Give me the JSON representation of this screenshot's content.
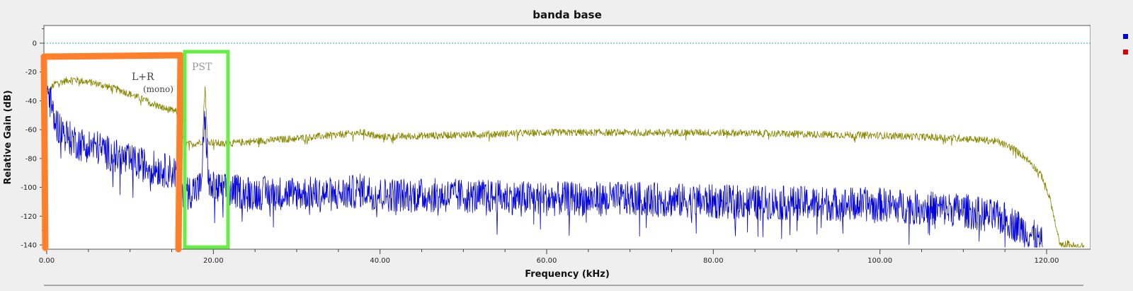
{
  "chart_data": {
    "type": "line",
    "title": "banda base",
    "xlabel": "Frequency (kHz)",
    "ylabel": "Relative Gain (dB)",
    "xlim": [
      0,
      125
    ],
    "ylim": [
      -142,
      12
    ],
    "x_ticks": [
      "0.00",
      "20.00",
      "40.00",
      "60.00",
      "80.00",
      "100.00",
      "120.00"
    ],
    "y_ticks": [
      "0",
      "-20",
      "-40",
      "-60",
      "-80",
      "-100",
      "-120",
      "-140"
    ],
    "reference_line": {
      "y": 0,
      "color": "#2aa0b0",
      "style": "dotted"
    },
    "series": [
      {
        "color": "#0000dd",
        "points": [
          [
            0.0,
            -30
          ],
          [
            1.0,
            -55
          ],
          [
            2.5,
            -65
          ],
          [
            4.0,
            -70
          ],
          [
            6.0,
            -72
          ],
          [
            8.0,
            -78
          ],
          [
            10.0,
            -82
          ],
          [
            12.0,
            -85
          ],
          [
            14.0,
            -88
          ],
          [
            15.8,
            -90
          ],
          [
            16.5,
            -105
          ],
          [
            17.5,
            -102
          ],
          [
            18.5,
            -100
          ],
          [
            18.9,
            -60
          ],
          [
            19.0,
            -55
          ],
          [
            19.1,
            -62
          ],
          [
            19.5,
            -100
          ],
          [
            21.0,
            -102
          ],
          [
            25.0,
            -104
          ],
          [
            30.0,
            -104
          ],
          [
            35.0,
            -105
          ],
          [
            38.0,
            -102
          ],
          [
            40.0,
            -105
          ],
          [
            50.0,
            -106
          ],
          [
            60.0,
            -108
          ],
          [
            70.0,
            -108
          ],
          [
            80.0,
            -110
          ],
          [
            90.0,
            -111
          ],
          [
            100.0,
            -112
          ],
          [
            110.0,
            -116
          ],
          [
            115.0,
            -122
          ],
          [
            118.0,
            -132
          ],
          [
            119.5,
            -140
          ]
        ],
        "noise_db": 12
      },
      {
        "color": "#888800",
        "points": [
          [
            0.0,
            -35
          ],
          [
            1.0,
            -28
          ],
          [
            3.0,
            -25
          ],
          [
            6.0,
            -28
          ],
          [
            9.0,
            -33
          ],
          [
            12.0,
            -40
          ],
          [
            14.0,
            -45
          ],
          [
            15.8,
            -48
          ],
          [
            16.5,
            -70
          ],
          [
            17.5,
            -70
          ],
          [
            18.7,
            -68
          ],
          [
            18.9,
            -40
          ],
          [
            19.0,
            -30
          ],
          [
            19.1,
            -42
          ],
          [
            19.3,
            -68
          ],
          [
            21.0,
            -70
          ],
          [
            25.0,
            -68
          ],
          [
            30.0,
            -66
          ],
          [
            38.0,
            -62
          ],
          [
            40.0,
            -65
          ],
          [
            60.0,
            -62
          ],
          [
            80.0,
            -62
          ],
          [
            100.0,
            -64
          ],
          [
            110.0,
            -66
          ],
          [
            114.0,
            -68
          ],
          [
            116.0,
            -73
          ],
          [
            118.0,
            -82
          ],
          [
            119.5,
            -93
          ],
          [
            120.5,
            -110
          ],
          [
            121.2,
            -130
          ],
          [
            121.7,
            -141
          ],
          [
            122.5,
            -139
          ],
          [
            123.5,
            -141
          ],
          [
            124.5,
            -141
          ]
        ],
        "noise_db": 2.5
      }
    ],
    "legend_colors": [
      "#0000dd",
      "#dd0000"
    ],
    "annotations": [
      {
        "text": "L+R",
        "color": "#444444"
      },
      {
        "text": "(mono)",
        "color": "#444444"
      },
      {
        "text": "PST",
        "color": "#999999"
      }
    ]
  },
  "colors": {
    "background": "#efefef",
    "plot_background": "#ffffff",
    "highlight_orange": "#ff7f2a",
    "highlight_green": "#66ee44"
  }
}
